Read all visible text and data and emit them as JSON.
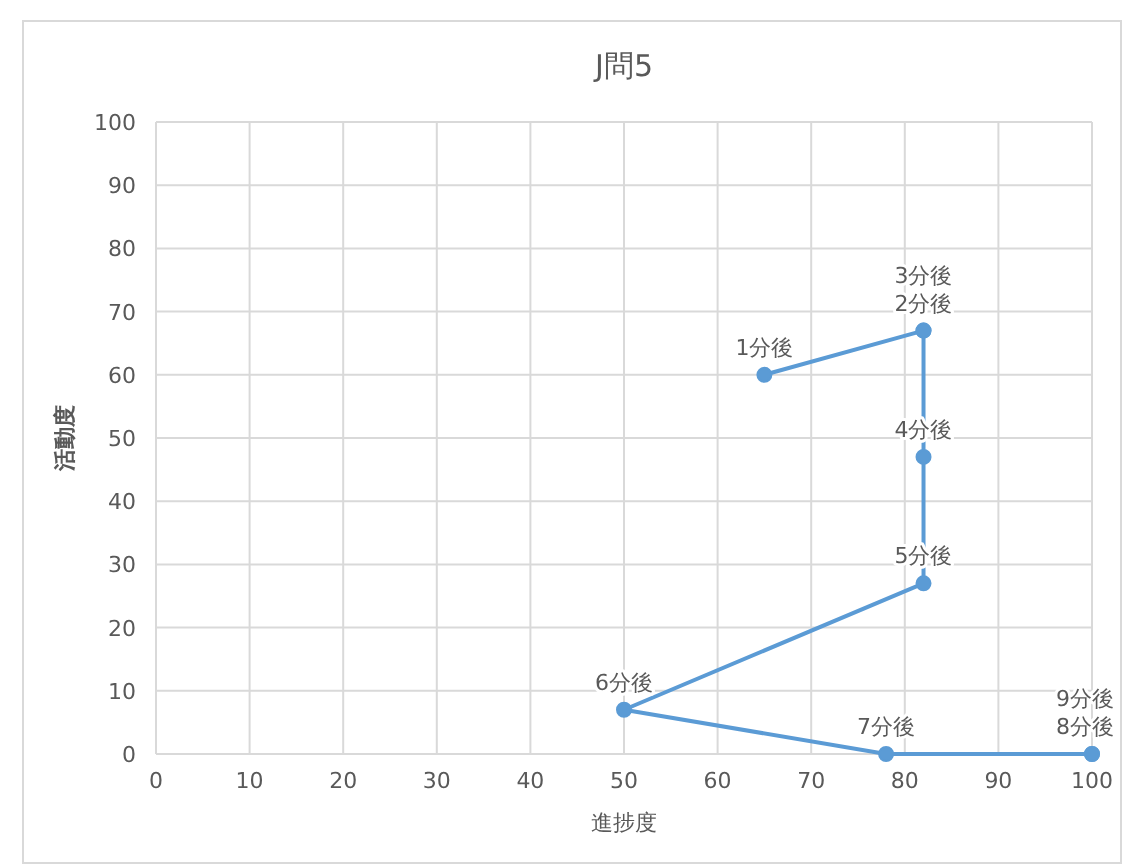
{
  "chart_data": {
    "type": "line",
    "title": "J問5",
    "xlabel": "進捗度",
    "ylabel": "活動度",
    "x": [
      65,
      82,
      82,
      82,
      82,
      50,
      78,
      100,
      100
    ],
    "values": [
      60,
      67,
      67,
      47,
      27,
      7,
      0,
      0,
      0
    ],
    "annotations": [
      {
        "text": "1分後",
        "x": 65,
        "y": 60
      },
      {
        "text": "2分後",
        "x": 82,
        "y": 67
      },
      {
        "text": "3分後",
        "x": 82,
        "y": 67
      },
      {
        "text": "4分後",
        "x": 82,
        "y": 47
      },
      {
        "text": "5分後",
        "x": 82,
        "y": 27
      },
      {
        "text": "6分後",
        "x": 50,
        "y": 7
      },
      {
        "text": "7分後",
        "x": 78,
        "y": 0
      },
      {
        "text": "8分後",
        "x": 100,
        "y": 0
      },
      {
        "text": "9分後",
        "x": 100,
        "y": 0
      }
    ],
    "color": "#5b9bd5",
    "marker": "circle",
    "grid": true,
    "xlim": [
      0,
      100
    ],
    "xticks": [
      0,
      10,
      20,
      30,
      40,
      50,
      60,
      70,
      80,
      90,
      100
    ],
    "ylim": [
      0,
      100
    ],
    "yticks": [
      0,
      10,
      20,
      30,
      40,
      50,
      60,
      70,
      80,
      90,
      100
    ]
  }
}
